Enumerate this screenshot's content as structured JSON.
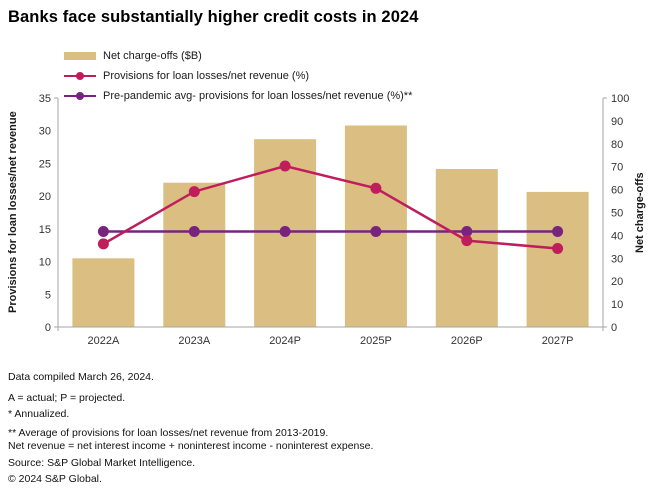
{
  "title": "Banks face substantially higher credit costs in 2024",
  "legend": {
    "items": [
      {
        "label": "Net charge-offs ($B)",
        "marker": "bar-swatch",
        "color": "#dbbe82"
      },
      {
        "label": "Provisions for loan losses/net revenue (%)",
        "marker": "line-dot",
        "color": "#c01d5c"
      },
      {
        "label": "Pre-pandemic avg- provisions for loan losses/net revenue (%)**",
        "marker": "line-dot",
        "color": "#782380"
      }
    ]
  },
  "chart_data": {
    "type": "bar",
    "categories": [
      "2022A",
      "2023A",
      "2024P",
      "2025P",
      "2026P",
      "2027P"
    ],
    "series": [
      {
        "name": "Net charge-offs ($B)",
        "type": "bar",
        "axis": "right",
        "color": "#dbbe82",
        "values": [
          30,
          63,
          82,
          88,
          69,
          59
        ]
      },
      {
        "name": "Provisions for loan losses/net revenue (%)",
        "type": "line",
        "axis": "left",
        "color": "#c01d5c",
        "values": [
          12.7,
          20.7,
          24.6,
          21.2,
          13.2,
          12.0
        ]
      },
      {
        "name": "Pre-pandemic avg- provisions for loan losses/net revenue (%)**",
        "type": "line",
        "axis": "left",
        "color": "#782380",
        "values": [
          14.6,
          14.6,
          14.6,
          14.6,
          14.6,
          14.6
        ]
      }
    ],
    "left_axis": {
      "label": "Provisions for loan losses/net revenue",
      "min": 0,
      "max": 35,
      "ticks": [
        0,
        5,
        10,
        15,
        20,
        25,
        30,
        35
      ]
    },
    "right_axis": {
      "label": "Net charge-offs",
      "min": 0,
      "max": 100,
      "ticks": [
        0,
        10,
        20,
        30,
        40,
        50,
        60,
        70,
        80,
        90,
        100
      ]
    },
    "grid": false,
    "legend_position": "top-left",
    "title": "Banks face substantially higher credit costs in 2024"
  },
  "footnotes": [
    "Data compiled March 26, 2024.",
    "A = actual; P = projected.",
    "* Annualized.",
    "** Average of provisions for loan losses/net revenue from 2013-2019.",
    "Net revenue = net interest income + noninterest income - noninterest expense.",
    "Source: S&P Global Market Intelligence.",
    "© 2024 S&P Global."
  ],
  "colors": {
    "bar": "#dbbe82",
    "provisions_line": "#c01d5c",
    "prepandemic_line": "#782380",
    "axis_line": "#a6a6a6",
    "tick_text": "#333333"
  }
}
